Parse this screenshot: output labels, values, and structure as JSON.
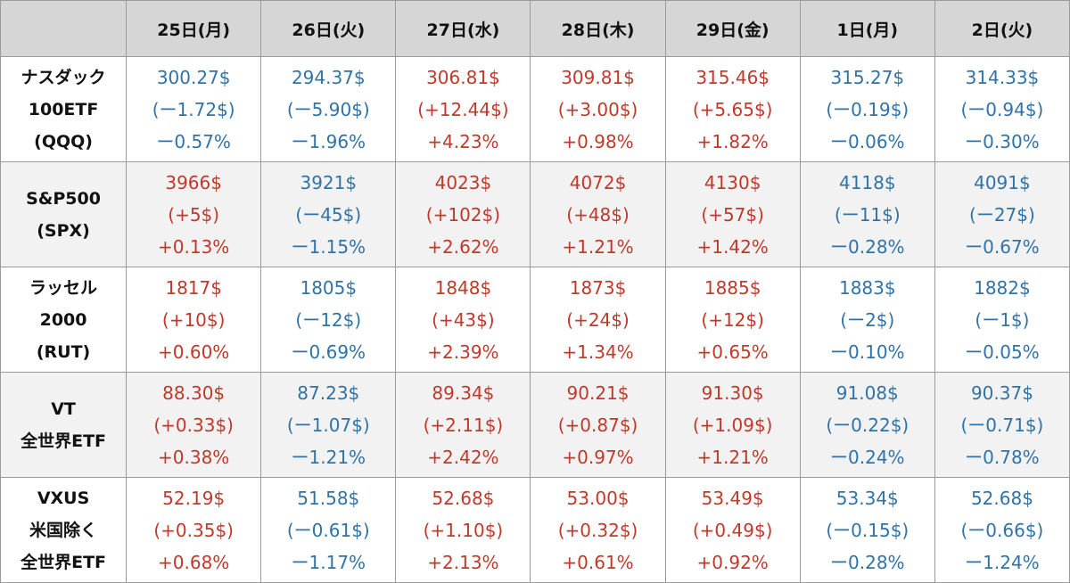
{
  "header": {
    "corner": "",
    "days": [
      "25日(月)",
      "26日(火)",
      "27日(水)",
      "28日(木)",
      "29日(金)",
      "1日(月)",
      "2日(火)"
    ]
  },
  "colors": {
    "up": "#c0392b",
    "down": "#2f73a8",
    "header_bg": "#d6d6d6",
    "alt_row_bg": "#f2f2f2"
  },
  "rows": [
    {
      "name": [
        "ナスダック",
        "100ETF",
        "(QQQ)"
      ],
      "cells": [
        {
          "trend": "down",
          "price": "300.27$",
          "change": "(ー1.72$)",
          "pct": "ー0.57%"
        },
        {
          "trend": "down",
          "price": "294.37$",
          "change": "(ー5.90$)",
          "pct": "ー1.96%"
        },
        {
          "trend": "up",
          "price": "306.81$",
          "change": "(+12.44$)",
          "pct": "+4.23%"
        },
        {
          "trend": "up",
          "price": "309.81$",
          "change": "(+3.00$)",
          "pct": "+0.98%"
        },
        {
          "trend": "up",
          "price": "315.46$",
          "change": "(+5.65$)",
          "pct": "+1.82%"
        },
        {
          "trend": "down",
          "price": "315.27$",
          "change": "(ー0.19$)",
          "pct": "ー0.06%"
        },
        {
          "trend": "down",
          "price": "314.33$",
          "change": "(ー0.94$)",
          "pct": "ー0.30%"
        }
      ]
    },
    {
      "name": [
        "S&P500",
        "(SPX)"
      ],
      "cells": [
        {
          "trend": "up",
          "price": "3966$",
          "change": "(+5$)",
          "pct": "+0.13%"
        },
        {
          "trend": "down",
          "price": "3921$",
          "change": "(ー45$)",
          "pct": "ー1.15%"
        },
        {
          "trend": "up",
          "price": "4023$",
          "change": "(+102$)",
          "pct": "+2.62%"
        },
        {
          "trend": "up",
          "price": "4072$",
          "change": "(+48$)",
          "pct": "+1.21%"
        },
        {
          "trend": "up",
          "price": "4130$",
          "change": "(+57$)",
          "pct": "+1.42%"
        },
        {
          "trend": "down",
          "price": "4118$",
          "change": "(ー11$)",
          "pct": "ー0.28%"
        },
        {
          "trend": "down",
          "price": "4091$",
          "change": "(ー27$)",
          "pct": "ー0.67%"
        }
      ]
    },
    {
      "name": [
        "ラッセル",
        "2000",
        "(RUT)"
      ],
      "cells": [
        {
          "trend": "up",
          "price": "1817$",
          "change": "(+10$)",
          "pct": "+0.60%"
        },
        {
          "trend": "down",
          "price": "1805$",
          "change": "(ー12$)",
          "pct": "ー0.69%"
        },
        {
          "trend": "up",
          "price": "1848$",
          "change": "(+43$)",
          "pct": "+2.39%"
        },
        {
          "trend": "up",
          "price": "1873$",
          "change": "(+24$)",
          "pct": "+1.34%"
        },
        {
          "trend": "up",
          "price": "1885$",
          "change": "(+12$)",
          "pct": "+0.65%"
        },
        {
          "trend": "down",
          "price": "1883$",
          "change": "(ー2$)",
          "pct": "ー0.10%"
        },
        {
          "trend": "down",
          "price": "1882$",
          "change": "(ー1$)",
          "pct": "ー0.05%"
        }
      ]
    },
    {
      "name": [
        "VT",
        "全世界ETF"
      ],
      "cells": [
        {
          "trend": "up",
          "price": "88.30$",
          "change": "(+0.33$)",
          "pct": "+0.38%"
        },
        {
          "trend": "down",
          "price": "87.23$",
          "change": "(ー1.07$)",
          "pct": "ー1.21%"
        },
        {
          "trend": "up",
          "price": "89.34$",
          "change": "(+2.11$)",
          "pct": "+2.42%"
        },
        {
          "trend": "up",
          "price": "90.21$",
          "change": "(+0.87$)",
          "pct": "+0.97%"
        },
        {
          "trend": "up",
          "price": "91.30$",
          "change": "(+1.09$)",
          "pct": "+1.21%"
        },
        {
          "trend": "down",
          "price": "91.08$",
          "change": "(ー0.22$)",
          "pct": "ー0.24%"
        },
        {
          "trend": "down",
          "price": "90.37$",
          "change": "(ー0.71$)",
          "pct": "ー0.78%"
        }
      ]
    },
    {
      "name": [
        "VXUS",
        "米国除く",
        "全世界ETF"
      ],
      "cells": [
        {
          "trend": "up",
          "price": "52.19$",
          "change": "(+0.35$)",
          "pct": "+0.68%"
        },
        {
          "trend": "down",
          "price": "51.58$",
          "change": "(ー0.61$)",
          "pct": "ー1.17%"
        },
        {
          "trend": "up",
          "price": "52.68$",
          "change": "(+1.10$)",
          "pct": "+2.13%"
        },
        {
          "trend": "up",
          "price": "53.00$",
          "change": "(+0.32$)",
          "pct": "+0.61%"
        },
        {
          "trend": "up",
          "price": "53.49$",
          "change": "(+0.49$)",
          "pct": "+0.92%"
        },
        {
          "trend": "down",
          "price": "53.34$",
          "change": "(ー0.15$)",
          "pct": "ー0.28%"
        },
        {
          "trend": "down",
          "price": "52.68$",
          "change": "(ー0.66$)",
          "pct": "ー1.24%"
        }
      ]
    }
  ]
}
